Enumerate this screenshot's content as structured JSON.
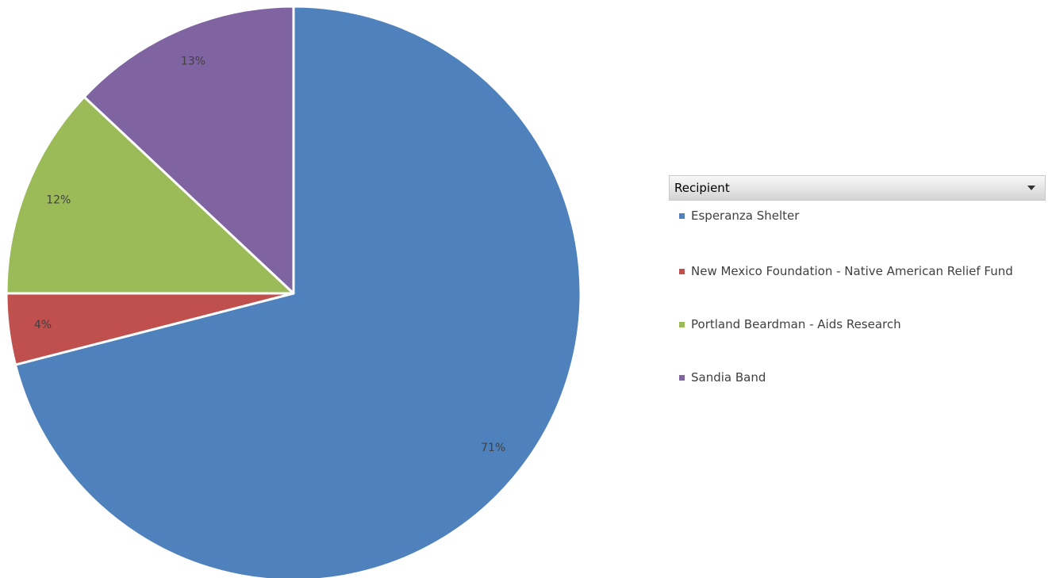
{
  "chart_data": {
    "type": "pie",
    "title": "",
    "legend_title": "Recipient",
    "legend_position": "right",
    "categories": [
      "Esperanza Shelter",
      "New Mexico Foundation - Native American Relief Fund",
      "Portland Beardman - Aids Research",
      "Sandia Band"
    ],
    "values": [
      71,
      4,
      12,
      13
    ],
    "labels": [
      "71%",
      "4%",
      "12%",
      "13%"
    ],
    "colors": [
      "#4f81bd",
      "#c0504d",
      "#9bbb59",
      "#8064a2"
    ],
    "start_angle": "12 o'clock",
    "direction": "clockwise"
  },
  "legend": {
    "header": "Recipient",
    "dropdown_icon": "chevron-down-icon"
  }
}
